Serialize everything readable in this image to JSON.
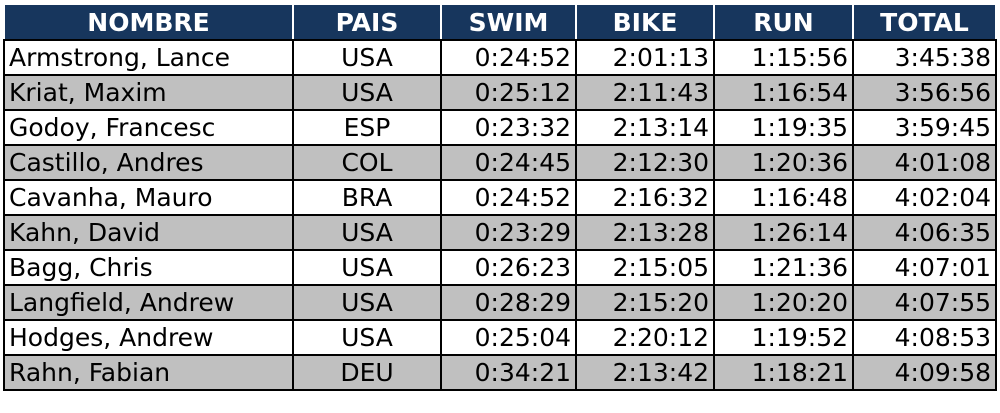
{
  "table": {
    "header": [
      "NOMBRE",
      "PAIS",
      "SWIM",
      "BIKE",
      "RUN",
      "TOTAL"
    ],
    "rows": [
      [
        "Armstrong, Lance",
        "USA",
        "0:24:52",
        "2:01:13",
        "1:15:56",
        "3:45:38"
      ],
      [
        "Kriat, Maxim",
        "USA",
        "0:25:12",
        "2:11:43",
        "1:16:54",
        "3:56:56"
      ],
      [
        "Godoy, Francesc",
        "ESP",
        "0:23:32",
        "2:13:14",
        "1:19:35",
        "3:59:45"
      ],
      [
        "Castillo, Andres",
        "COL",
        "0:24:45",
        "2:12:30",
        "1:20:36",
        "4:01:08"
      ],
      [
        "Cavanha, Mauro",
        "BRA",
        "0:24:52",
        "2:16:32",
        "1:16:48",
        "4:02:04"
      ],
      [
        "Kahn, David",
        "USA",
        "0:23:29",
        "2:13:28",
        "1:26:14",
        "4:06:35"
      ],
      [
        "Bagg, Chris",
        "USA",
        "0:26:23",
        "2:15:05",
        "1:21:36",
        "4:07:01"
      ],
      [
        "Langfield, Andrew",
        "USA",
        "0:28:29",
        "2:15:20",
        "1:20:20",
        "4:07:55"
      ],
      [
        "Hodges, Andrew",
        "USA",
        "0:25:04",
        "2:20:12",
        "1:19:52",
        "4:08:53"
      ],
      [
        "Rahn, Fabian",
        "DEU",
        "0:34:21",
        "2:13:42",
        "1:18:21",
        "4:09:58"
      ]
    ]
  }
}
